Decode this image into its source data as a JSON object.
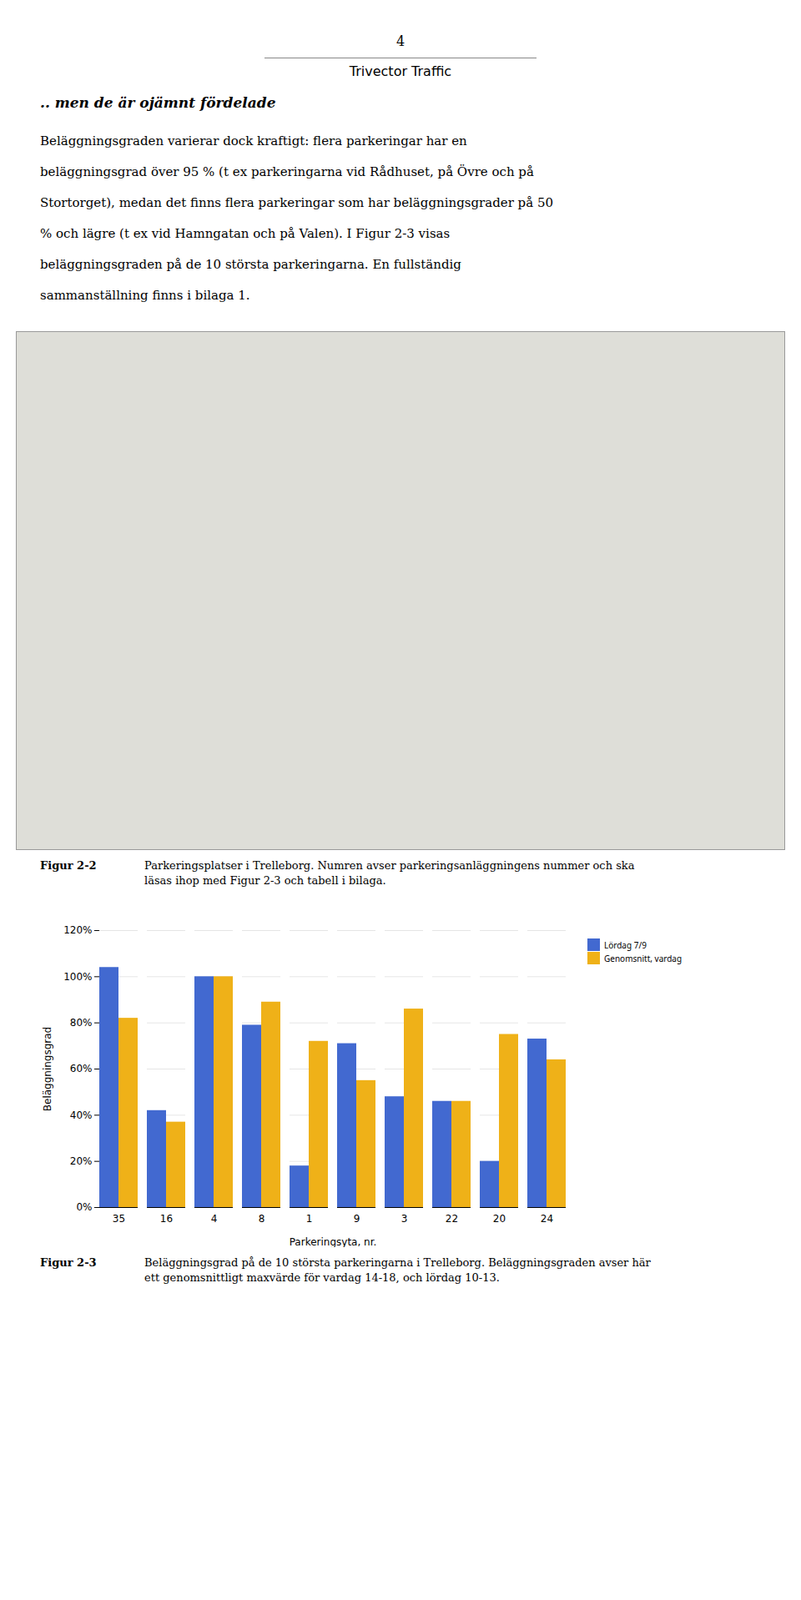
{
  "page_number": "4",
  "page_header": "Trivector Traffic",
  "heading": ".. men de är ojämnt fördelade",
  "body": [
    "Beläggningsgraden varierar dock kraftigt: flera parkeringar har en",
    "beläggningsgrad över 95 % (t ex parkeringarna vid Rådhuset, på Övre och på",
    "Stortorget), medan det finns flera parkeringar som har beläggningsgrader på 50",
    "% och lägre (t ex vid Hamngatan och på Valen). I Figur 2-3 visas",
    "beläggningsgraden på de 10 största parkeringarna. En fullständig",
    "sammanställning finns i bilaga 1."
  ],
  "figure_caption": {
    "label": "Figur 2-2",
    "text": [
      "Parkeringsplatser i Trelleborg. Numren avser parkeringsanläggningens nummer och ska",
      "läsas ihop med Figur 2-3 och tabell i bilaga."
    ]
  },
  "chart_data": {
    "type": "bar",
    "xlabel": "Parkeringsyta, nr.",
    "ylabel": "Beläggningsgrad",
    "categories": [
      "35",
      "16",
      "4",
      "8",
      "1",
      "9",
      "3",
      "22",
      "20",
      "24"
    ],
    "series": [
      {
        "name": "Lördag 7/9",
        "values": [
          1.04,
          0.42,
          1.0,
          0.79,
          0.18,
          0.71,
          0.48,
          0.46,
          0.2,
          0.73
        ]
      },
      {
        "name": "Genomsnitt, vardag",
        "values": [
          0.82,
          0.37,
          1.0,
          0.89,
          0.72,
          0.55,
          0.86,
          0.46,
          0.75,
          0.64
        ]
      }
    ],
    "ylim": [
      0,
      1.2
    ],
    "yticks": [
      {
        "value": 0.0,
        "label": "0%"
      },
      {
        "value": 0.2,
        "label": "20%"
      },
      {
        "value": 0.4,
        "label": "40%"
      },
      {
        "value": 0.6,
        "label": "60%"
      },
      {
        "value": 0.8,
        "label": "80%"
      },
      {
        "value": 1.0,
        "label": "100%"
      },
      {
        "value": 1.2,
        "label": "120%"
      }
    ],
    "grid": true,
    "legend": "right",
    "caption": {
      "label": "Figur 2-3",
      "text": [
        "Beläggningsgrad på de 10 största parkeringarna i Trelleborg. Beläggningsgraden avser här",
        "ett genomsnittligt maxvärde för vardag 14-18, och lördag 10-13."
      ]
    }
  }
}
